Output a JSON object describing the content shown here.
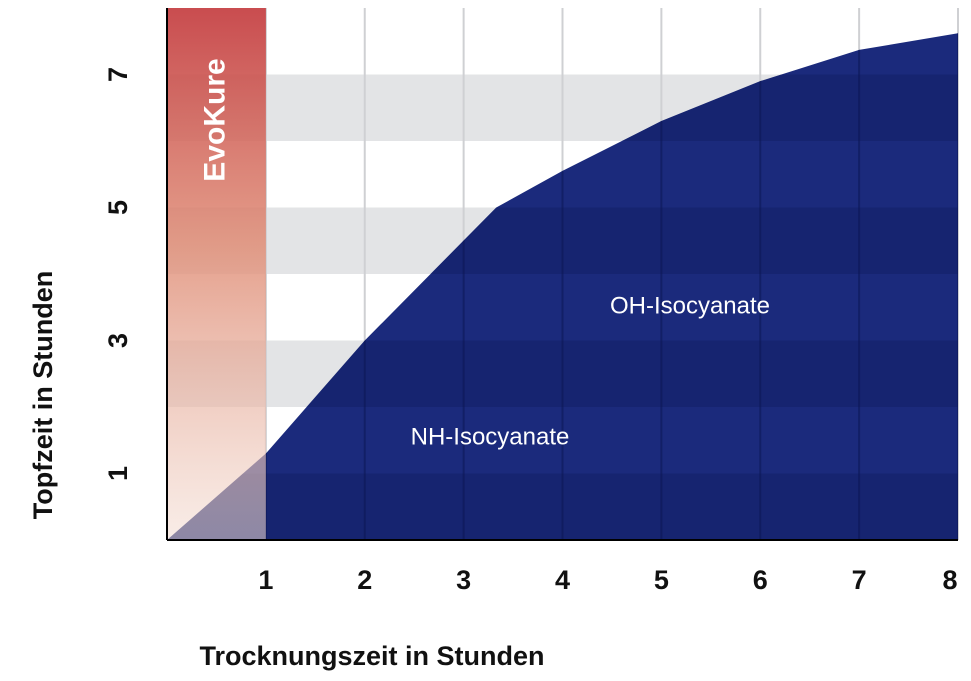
{
  "chart_data": {
    "type": "area",
    "x": [
      0,
      1,
      2,
      3.33,
      4,
      5,
      6,
      7,
      8
    ],
    "series": [
      {
        "name": "Isocyanate",
        "color": "#1b2a7c",
        "values": [
          0,
          1.3,
          3.0,
          5.0,
          5.55,
          6.3,
          6.9,
          7.37,
          7.62
        ]
      }
    ],
    "xlim": [
      0,
      8
    ],
    "ylim": [
      0,
      8
    ],
    "xticks": [
      1,
      2,
      3,
      4,
      5,
      6,
      7,
      8
    ],
    "yticks": [
      1,
      3,
      5,
      7
    ],
    "x_label": "Trocknungszeit in Stunden",
    "y_label": "Topfzeit in Stunden",
    "annotations": [
      "EvoKure",
      "OH-Isocyanate",
      "NH-Isocyanate"
    ],
    "grid": true
  }
}
